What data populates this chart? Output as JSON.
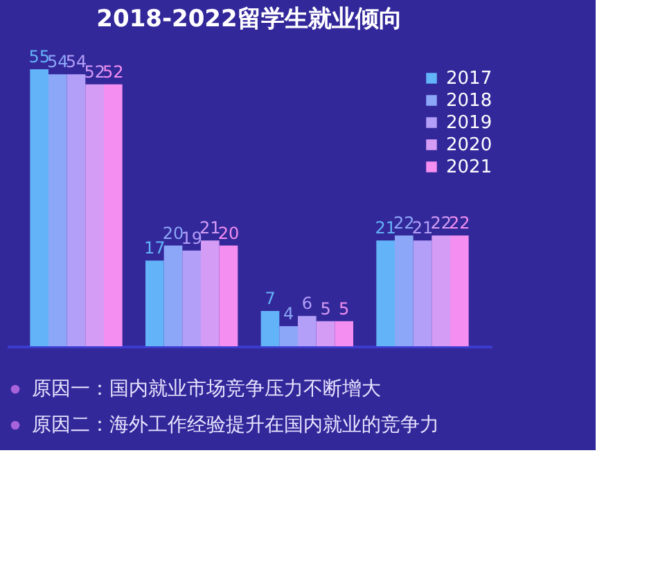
{
  "chart_data": {
    "type": "bar",
    "title": "2018-2022留学生就业倾向",
    "categories": [
      null,
      null,
      null,
      null
    ],
    "series": [
      {
        "name": "2017",
        "color": "#63b3f8",
        "values": [
          55,
          17,
          7,
          21
        ]
      },
      {
        "name": "2018",
        "color": "#8ca6f8",
        "values": [
          54,
          20,
          4,
          22
        ]
      },
      {
        "name": "2019",
        "color": "#b39ef8",
        "values": [
          54,
          19,
          6,
          21
        ]
      },
      {
        "name": "2020",
        "color": "#d49cf5",
        "values": [
          52,
          21,
          5,
          22
        ]
      },
      {
        "name": "2021",
        "color": "#f48ef0",
        "values": [
          52,
          20,
          5,
          22
        ]
      }
    ],
    "data_labels": true,
    "legend": "top right",
    "grid": false,
    "tick_labels": false,
    "annotations": [
      "原因一：国内就业市场竞争压力不断增大",
      "原因二：海外工作经验提升在国内就业的竞争力"
    ]
  }
}
